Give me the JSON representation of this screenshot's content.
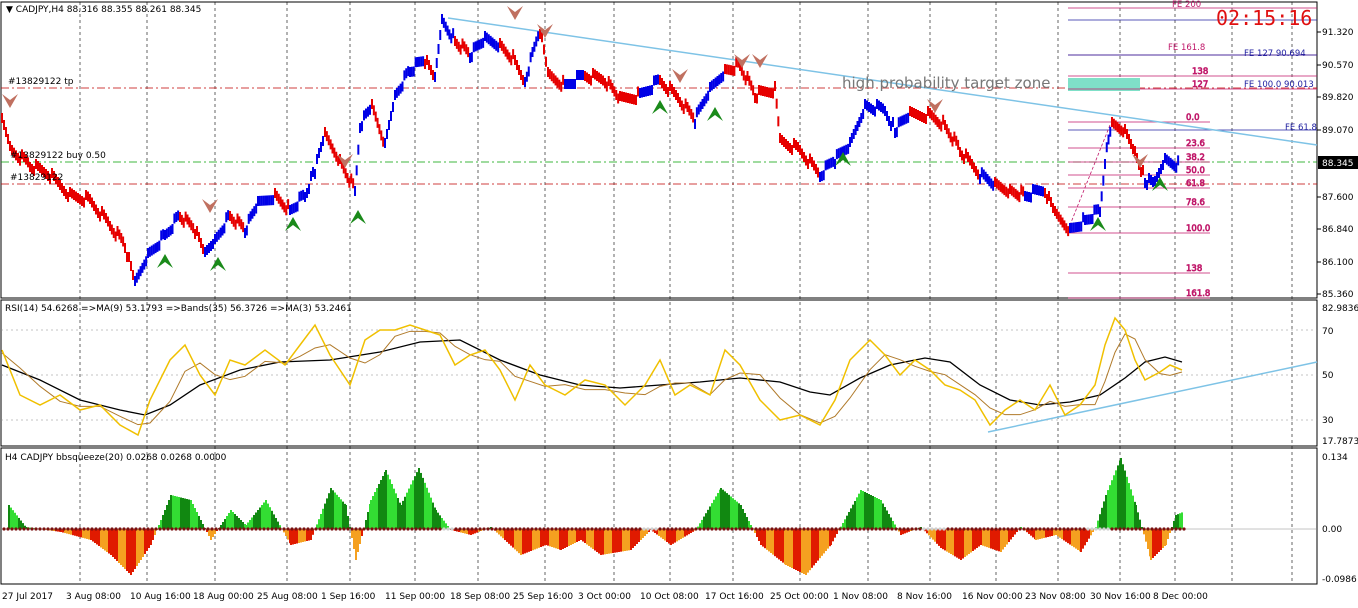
{
  "chart": {
    "header": "CADJPY,H4  88.316 88.355 88.261 88.345",
    "timer": "02:15:16",
    "current_price": "88.345",
    "zone_text": "high probability target zone",
    "order_labels": [
      "#13829122 tp",
      "#13829122 buy 0.50",
      "#13829122"
    ],
    "price_ticks": [
      "91.320",
      "90.570",
      "89.820",
      "89.070",
      "88.345",
      "87.600",
      "86.840",
      "86.100",
      "85.360"
    ],
    "fib_levels": [
      "200",
      "161.8",
      "138",
      "127",
      "0.0",
      "23.6",
      "38.2",
      "50.0",
      "61.8",
      "78.6",
      "100.0",
      "138",
      "161.8"
    ],
    "fe_labels": [
      "FE 161.8",
      "FE 127  90.694",
      "FE 100.0  90.013",
      "FE 61.8",
      "FE 200"
    ],
    "time_ticks": [
      "27 Jul 2017",
      "3 Aug 08:00",
      "10 Aug 16:00",
      "18 Aug 00:00",
      "25 Aug 08:00",
      "1 Sep 16:00",
      "11 Sep 00:00",
      "18 Sep 08:00",
      "25 Sep 16:00",
      "3 Oct 00:00",
      "10 Oct 08:00",
      "17 Oct 16:00",
      "25 Oct 00:00",
      "1 Nov 08:00",
      "8 Nov 16:00",
      "16 Nov 00:00",
      "23 Nov 08:00",
      "30 Nov 16:00",
      "8 Dec 00:00"
    ]
  },
  "rsi": {
    "header": "RSI(14) 54.6268  =>MA(9) 53.1793  =>Bands(35) 56.3726  =>MA(3) 53.2461",
    "ticks": [
      "82.9836",
      "70",
      "50",
      "30",
      "17.7873"
    ]
  },
  "squeeze": {
    "header": "H4 CADJPY bbsqueeze(20) 0.0268 0.0268 0.0000",
    "ticks": [
      "0.134",
      "0.00",
      "-0.0986"
    ]
  },
  "colors": {
    "bull": "#0000e6",
    "bear": "#e60000",
    "trend": "#7ec3e6",
    "rsi": "#f0c000",
    "rsi_ma": "#b07a2a",
    "bands": "#000000",
    "zone": "#7fe0c8",
    "pos": "#22cc22",
    "neg": "#e02000"
  }
}
